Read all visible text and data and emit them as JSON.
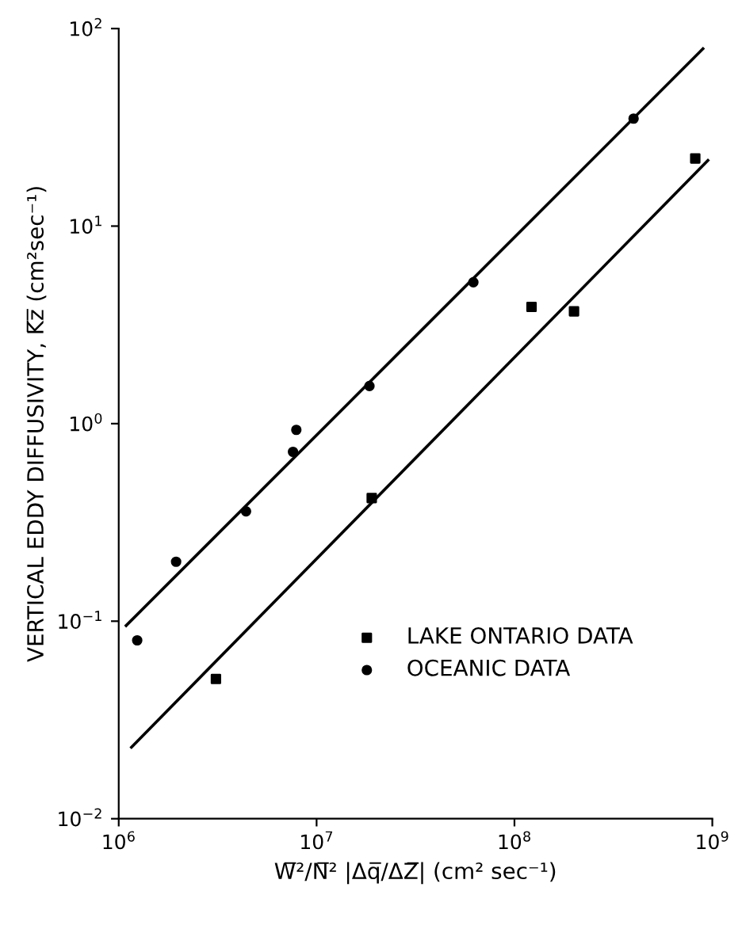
{
  "chart_data": {
    "type": "scatter",
    "xlabel": "W̅²/N̅² |Δq̅/ΔZ̅| (cm² sec⁻¹)",
    "ylabel": "VERTICAL EDDY DIFFUSIVITY, K̅z̅ (cm²sec⁻¹)",
    "log": "xy",
    "grid": false,
    "legend": "bottom right",
    "xlim": [
      1000000,
      1000000000
    ],
    "ylim": [
      0.01,
      100
    ],
    "xticks": [
      {
        "value": 1000000,
        "label": "10$^{6}$"
      },
      {
        "value": 10000000,
        "label": "10$^{7}$"
      },
      {
        "value": 100000000,
        "label": "10$^{8}$"
      },
      {
        "value": 1000000000,
        "label": "10$^{9}$"
      }
    ],
    "yticks": [
      {
        "value": 0.01,
        "label": "10$^{−2}$"
      },
      {
        "value": 0.1,
        "label": "10$^{−1}$"
      },
      {
        "value": 1,
        "label": "10$^{0}$"
      },
      {
        "value": 10,
        "label": "10$^{1}$"
      },
      {
        "value": 100,
        "label": "10$^{2}$"
      }
    ],
    "series": [
      {
        "name": "LAKE ONTARIO DATA",
        "color": "#000000",
        "marker": "square",
        "x": [
          3100000,
          19000000,
          122000000,
          200000000,
          820000000
        ],
        "values": [
          0.051,
          0.42,
          3.9,
          3.7,
          22
        ]
      },
      {
        "name": "OCEANIC DATA",
        "color": "#000000",
        "marker": "circle",
        "x": [
          1240000,
          1950000,
          4400000,
          7600000,
          7900000,
          18500000,
          62000000,
          400000000
        ],
        "values": [
          0.08,
          0.2,
          0.36,
          0.72,
          0.93,
          1.55,
          5.2,
          35
        ]
      },
      {
        "type": "line",
        "color": "#000000",
        "marker": "none",
        "line_style": "solid",
        "x": [
          1090000,
          897000000
        ],
        "values": [
          0.095,
          79
        ]
      },
      {
        "type": "line",
        "color": "#000000",
        "marker": "none",
        "line_style": "solid",
        "x": [
          1160000,
          950000000
        ],
        "values": [
          0.023,
          21.5
        ]
      }
    ]
  }
}
